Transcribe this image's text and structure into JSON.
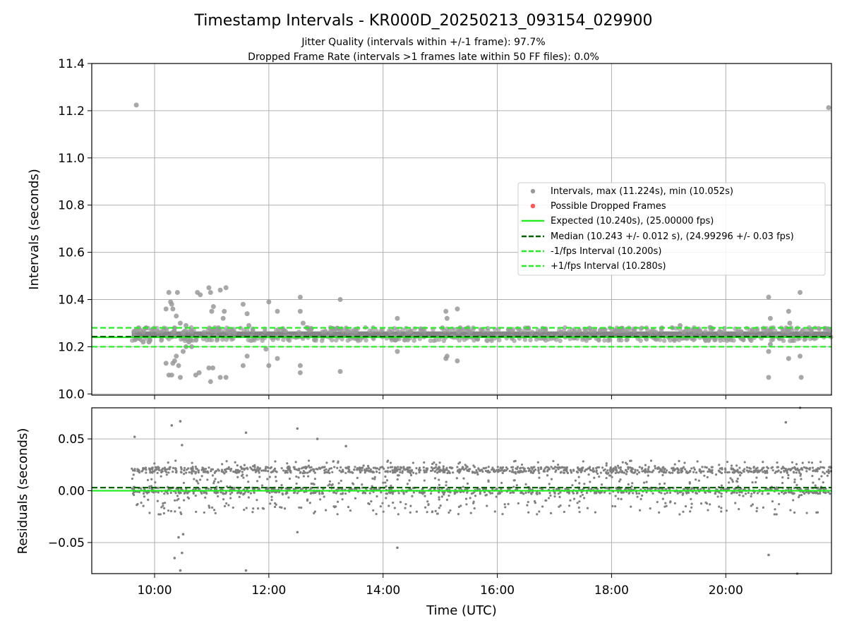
{
  "chart_data": [
    {
      "type": "scatter",
      "title": "Timestamp Intervals - KR000D_20250213_093154_029900",
      "subtitle_lines": [
        "Jitter Quality (intervals within +/-1 frame): 97.7%",
        "Dropped Frame Rate (intervals >1 frames late within 50 FF files): 0.0%"
      ],
      "xlabel": "",
      "ylabel": "Intervals (seconds)",
      "x_axis_units": "hours UTC",
      "xlim": [
        8.9,
        21.85
      ],
      "ylim": [
        9.995,
        11.4
      ],
      "yticks": [
        "10.0",
        "10.2",
        "10.4",
        "10.6",
        "10.8",
        "11.0",
        "11.2",
        "11.4"
      ],
      "grid": true,
      "legend_position": "center-right",
      "legend": [
        "Intervals, max (11.224s), min (10.052s)",
        "Possible Dropped Frames",
        "Expected (10.240s), (25.00000 fps)",
        "Median (10.243 +/- 0.012 s), (24.99296 +/- 0.03 fps)",
        "-1/fps Interval (10.200s)",
        "+1/fps Interval (10.280s)"
      ],
      "expected_interval": 10.24,
      "median_interval": 10.243,
      "minus_one_frame_interval": 10.2,
      "plus_one_frame_interval": 10.28,
      "max_interval": 11.224,
      "min_interval": 10.052,
      "dense_band": {
        "x_start": 9.6,
        "x_end": 21.85,
        "y_low": 10.238,
        "y_high": 10.265
      },
      "outliers": [
        [
          9.68,
          11.224
        ],
        [
          21.8,
          11.213
        ],
        [
          9.72,
          10.28
        ],
        [
          9.75,
          10.27
        ],
        [
          9.8,
          10.22
        ],
        [
          9.85,
          10.28
        ],
        [
          9.9,
          10.22
        ],
        [
          9.95,
          10.27
        ],
        [
          10.2,
          10.36
        ],
        [
          10.25,
          10.43
        ],
        [
          10.28,
          10.39
        ],
        [
          10.3,
          10.38
        ],
        [
          10.32,
          10.36
        ],
        [
          10.35,
          10.28
        ],
        [
          10.38,
          10.33
        ],
        [
          10.4,
          10.43
        ],
        [
          10.45,
          10.3
        ],
        [
          10.5,
          10.26
        ],
        [
          10.55,
          10.29
        ],
        [
          10.6,
          10.22
        ],
        [
          10.65,
          10.2
        ],
        [
          10.75,
          10.43
        ],
        [
          10.8,
          10.42
        ],
        [
          10.95,
          10.45
        ],
        [
          10.98,
          10.43
        ],
        [
          11.0,
          10.35
        ],
        [
          11.03,
          10.37
        ],
        [
          11.15,
          10.44
        ],
        [
          11.2,
          10.32
        ],
        [
          11.22,
          10.35
        ],
        [
          11.25,
          10.45
        ],
        [
          11.4,
          10.26
        ],
        [
          11.55,
          10.38
        ],
        [
          11.62,
          10.34
        ],
        [
          11.65,
          10.29
        ],
        [
          12.0,
          10.39
        ],
        [
          12.15,
          10.35
        ],
        [
          12.55,
          10.41
        ],
        [
          12.55,
          10.35
        ],
        [
          12.6,
          10.3
        ],
        [
          13.25,
          10.4
        ],
        [
          10.2,
          10.13
        ],
        [
          10.25,
          10.08
        ],
        [
          10.3,
          10.08
        ],
        [
          10.32,
          10.13
        ],
        [
          10.35,
          10.14
        ],
        [
          10.38,
          10.16
        ],
        [
          10.42,
          10.12
        ],
        [
          10.45,
          10.07
        ],
        [
          10.5,
          10.18
        ],
        [
          10.55,
          10.2
        ],
        [
          10.72,
          10.08
        ],
        [
          10.78,
          10.09
        ],
        [
          10.95,
          10.11
        ],
        [
          10.98,
          10.052
        ],
        [
          11.02,
          10.11
        ],
        [
          11.15,
          10.07
        ],
        [
          11.25,
          10.07
        ],
        [
          11.55,
          10.12
        ],
        [
          11.62,
          10.16
        ],
        [
          11.95,
          10.19
        ],
        [
          12.0,
          10.12
        ],
        [
          12.15,
          10.15
        ],
        [
          12.55,
          10.12
        ],
        [
          12.55,
          10.09
        ],
        [
          13.25,
          10.095
        ],
        [
          14.25,
          10.32
        ],
        [
          14.25,
          10.18
        ],
        [
          15.1,
          10.35
        ],
        [
          15.12,
          10.32
        ],
        [
          15.3,
          10.36
        ],
        [
          15.35,
          10.28
        ],
        [
          15.1,
          10.15
        ],
        [
          15.12,
          10.16
        ],
        [
          15.3,
          10.14
        ],
        [
          19.2,
          10.29
        ],
        [
          19.5,
          10.27
        ],
        [
          20.75,
          10.41
        ],
        [
          20.78,
          10.32
        ],
        [
          20.78,
          10.27
        ],
        [
          21.1,
          10.35
        ],
        [
          21.12,
          10.3
        ],
        [
          21.3,
          10.43
        ],
        [
          21.35,
          10.27
        ],
        [
          20.75,
          10.18
        ],
        [
          20.78,
          10.21
        ],
        [
          20.75,
          10.07
        ],
        [
          21.1,
          10.15
        ],
        [
          21.3,
          10.16
        ],
        [
          21.32,
          10.07
        ]
      ]
    },
    {
      "type": "scatter",
      "title": "",
      "xlabel": "Time (UTC)",
      "ylabel": "Residuals (seconds)",
      "xlim": [
        8.9,
        21.85
      ],
      "ylim": [
        -0.08,
        0.08
      ],
      "xticks": [
        "10:00",
        "12:00",
        "14:00",
        "16:00",
        "18:00",
        "20:00"
      ],
      "xtick_values": [
        10,
        12,
        14,
        16,
        18,
        20
      ],
      "yticks": [
        "0.05",
        "0.00",
        "−0.05"
      ],
      "ytick_values": [
        0.05,
        0.0,
        -0.05
      ],
      "grid": true,
      "expected_residual": 0.0,
      "median_residual": 0.003,
      "residual_bands": [
        0.0,
        0.02
      ],
      "residual_spread": 0.013,
      "outliers": [
        [
          9.65,
          0.052
        ],
        [
          10.3,
          0.063
        ],
        [
          10.45,
          0.067
        ],
        [
          10.48,
          0.044
        ],
        [
          11.6,
          0.056
        ],
        [
          12.5,
          0.06
        ],
        [
          12.85,
          0.05
        ],
        [
          13.35,
          0.043
        ],
        [
          21.05,
          0.066
        ],
        [
          21.3,
          0.08
        ],
        [
          10.35,
          -0.065
        ],
        [
          10.45,
          -0.077
        ],
        [
          10.48,
          -0.06
        ],
        [
          10.5,
          -0.042
        ],
        [
          10.42,
          -0.045
        ],
        [
          11.6,
          -0.077
        ],
        [
          12.5,
          -0.04
        ],
        [
          14.25,
          -0.055
        ],
        [
          20.75,
          -0.062
        ],
        [
          21.25,
          -0.08
        ]
      ]
    }
  ],
  "colors": {
    "points": "#808080",
    "points_upper": "#999999",
    "dropped": "#ff5555",
    "expected": "#22ee22",
    "median": "#006400",
    "fps_bounds": "#22ee22",
    "grid": "#b0b0b0"
  },
  "legend_symbols": [
    "gray-dot",
    "red-dot",
    "green-solid-line",
    "dark-green-dashed-line",
    "green-dashed-line",
    "green-dashed-line"
  ]
}
